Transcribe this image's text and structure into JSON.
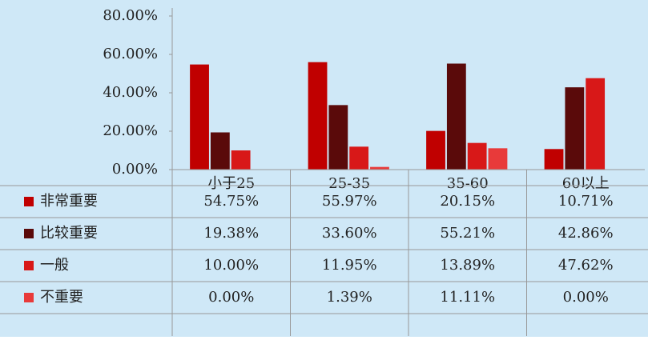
{
  "chart_data": {
    "type": "bar",
    "categories": [
      "小于25",
      "25-35",
      "35-60",
      "60以上"
    ],
    "ylim": [
      0,
      80
    ],
    "yticks": [
      {
        "value": 0,
        "label": "0.00%"
      },
      {
        "value": 20,
        "label": "20.00%"
      },
      {
        "value": 40,
        "label": "40.00%"
      },
      {
        "value": 60,
        "label": "60.00%"
      },
      {
        "value": 80,
        "label": "80.00%"
      }
    ],
    "series": [
      {
        "name": "非常重要",
        "color": "#c00000",
        "values": [
          54.75,
          55.97,
          20.15,
          10.71
        ],
        "value_labels": [
          "54.75%",
          "55.97%",
          "20.15%",
          "10.71%"
        ]
      },
      {
        "name": "比较重要",
        "color": "#5a0a0a",
        "values": [
          19.38,
          33.6,
          55.21,
          42.86
        ],
        "value_labels": [
          "19.38%",
          "33.60%",
          "55.21%",
          "42.86%"
        ]
      },
      {
        "name": "一般",
        "color": "#d81818",
        "values": [
          10,
          11.95,
          13.89,
          47.62
        ],
        "value_labels": [
          "10.00%",
          "11.95%",
          "13.89%",
          "47.62%"
        ]
      },
      {
        "name": "不重要",
        "color": "#e83a3a",
        "values": [
          0,
          1.39,
          11.11,
          0
        ],
        "value_labels": [
          "0.00%",
          "1.39%",
          "11.11%",
          "0.00%"
        ]
      }
    ]
  }
}
